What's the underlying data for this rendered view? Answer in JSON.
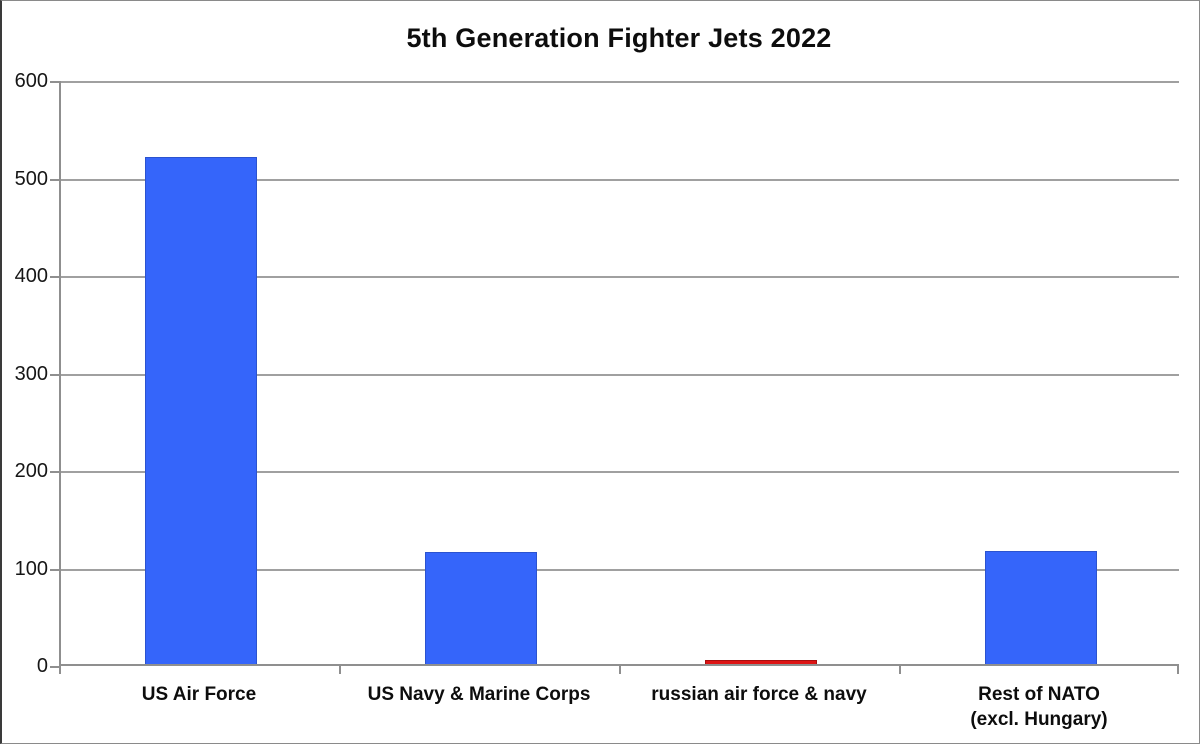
{
  "chart_data": {
    "type": "bar",
    "title": "5th Generation Fighter Jets 2022",
    "categories": [
      "US Air Force",
      "US Navy & Marine Corps",
      "russian air force & navy",
      "Rest of NATO\n(excl. Hungary)"
    ],
    "values": [
      520,
      115,
      4,
      116
    ],
    "bar_colors": [
      "#3565fa",
      "#3565fa",
      "#dd1414",
      "#3565fa"
    ],
    "bar_border_colors": [
      "#2b53cf",
      "#2b53cf",
      "#a80e0e",
      "#2b53cf"
    ],
    "xlabel": "",
    "ylabel": "",
    "ylim": [
      0,
      600
    ],
    "yticks": [
      0,
      100,
      200,
      300,
      400,
      500,
      600
    ],
    "grid": true,
    "legend": "none"
  },
  "colors": {
    "grid": "#a0a0a0",
    "axis": "#8f8f8f",
    "text": "#111111",
    "background": "#ffffff"
  }
}
